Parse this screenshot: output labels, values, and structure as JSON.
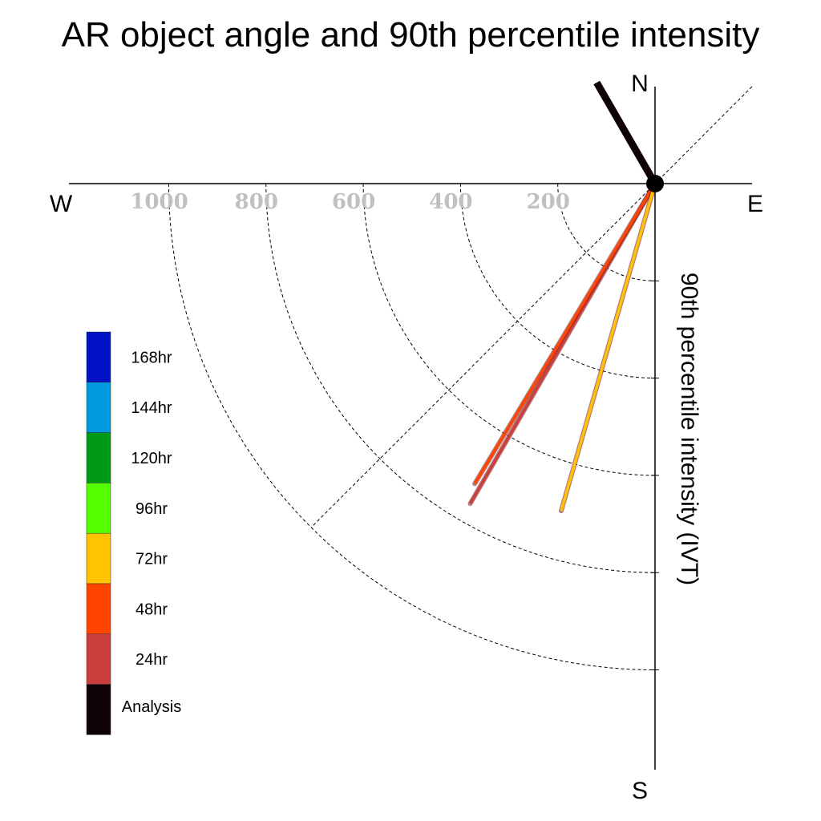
{
  "chart_data": {
    "type": "polar-vector",
    "title": "AR object angle and 90th percentile intensity",
    "ylabel": "90th percentile intensity (IVT)",
    "directions": {
      "north": "N",
      "south": "S",
      "east": "E",
      "west": "W"
    },
    "radial_ticks": [
      200,
      400,
      600,
      1000,
      800
    ],
    "radial_ticks_sorted": [
      200,
      400,
      600,
      800,
      1000
    ],
    "rmax": 1200,
    "grid": true,
    "series": [
      {
        "name": "24hr",
        "angle_deg": 210,
        "intensity": 760,
        "color": "#cc3d3d"
      },
      {
        "name": "48hr",
        "angle_deg": 211,
        "intensity": 720,
        "color": "#ff4500"
      },
      {
        "name": "72hr",
        "angle_deg": 196,
        "intensity": 700,
        "color": "#ffc300"
      },
      {
        "name": "Analysis",
        "angle_deg": 330,
        "intensity": 240,
        "color": "#0f0308"
      }
    ],
    "legend": [
      {
        "label": "168hr",
        "color": "#0012c4"
      },
      {
        "label": "144hr",
        "color": "#0099dd"
      },
      {
        "label": "120hr",
        "color": "#009a16"
      },
      {
        "label": "96hr",
        "color": "#55ff00"
      },
      {
        "label": "72hr",
        "color": "#ffc300"
      },
      {
        "label": "48hr",
        "color": "#ff4500"
      },
      {
        "label": "24hr",
        "color": "#cc3d3d"
      },
      {
        "label": "Analysis",
        "color": "#0f0308"
      }
    ],
    "legend_placement": "bottom-left"
  }
}
